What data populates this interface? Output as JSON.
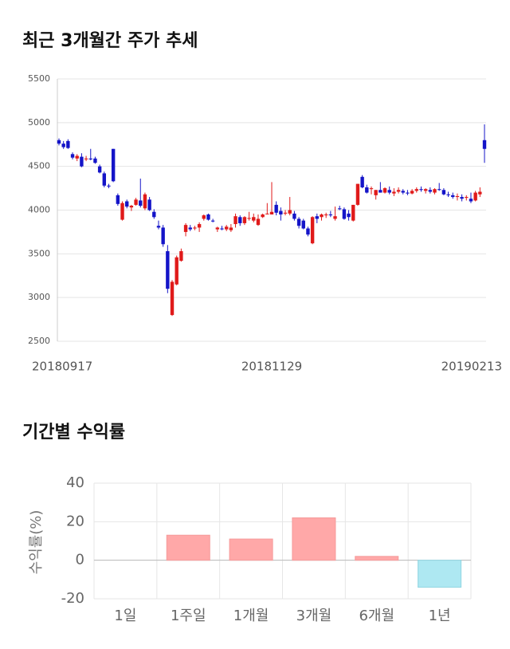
{
  "chart_data": [
    {
      "type": "candlestick",
      "title": "최근 3개월간 주가 추세",
      "categories": [
        "20180917",
        null,
        null,
        null,
        null,
        null,
        null,
        null,
        null,
        null,
        null,
        null,
        null,
        null,
        null,
        null,
        null,
        null,
        null,
        null,
        null,
        null,
        null,
        null,
        null,
        null,
        null,
        null,
        null,
        null,
        null,
        null,
        null,
        null,
        null,
        null,
        null,
        null,
        null,
        null,
        null,
        null,
        null,
        null,
        null,
        null,
        null,
        "20181129",
        null,
        null,
        null,
        null,
        null,
        null,
        null,
        null,
        null,
        null,
        null,
        null,
        null,
        null,
        null,
        null,
        null,
        null,
        null,
        null,
        null,
        null,
        null,
        null,
        null,
        null,
        null,
        null,
        null,
        null,
        null,
        null,
        null,
        null,
        null,
        null,
        null,
        null,
        null,
        null,
        null,
        null,
        null,
        null,
        null,
        null,
        "20190213"
      ],
      "open": [
        4800,
        4760,
        4790,
        4640,
        4590,
        4610,
        4580,
        4590,
        4590,
        4500,
        4420,
        4280,
        4700,
        4170,
        3890,
        4100,
        4030,
        4060,
        4110,
        4020,
        4120,
        3980,
        3820,
        3800,
        3530,
        2800,
        3150,
        3420,
        3750,
        3800,
        3790,
        3800,
        3900,
        3950,
        3880,
        3780,
        3790,
        3780,
        3770,
        3840,
        3920,
        3850,
        3900,
        3880,
        3830,
        3920,
        3960,
        3950,
        4060,
        3990,
        3960,
        3960,
        3960,
        3900,
        3880,
        3790,
        3620,
        3930,
        3920,
        3940,
        3950,
        3900,
        4020,
        4010,
        3960,
        3880,
        4060,
        4380,
        4260,
        4240,
        4170,
        4230,
        4200,
        4230,
        4190,
        4210,
        4220,
        4200,
        4190,
        4220,
        4240,
        4220,
        4230,
        4200,
        4240,
        4230,
        4180,
        4170,
        4150,
        4150,
        4140,
        4130,
        4110,
        4180,
        4800
      ],
      "high": [
        4820,
        4790,
        4810,
        4660,
        4640,
        4650,
        4620,
        4700,
        4610,
        4520,
        4440,
        4300,
        4700,
        4190,
        4100,
        4120,
        4060,
        4140,
        4360,
        4200,
        4150,
        4010,
        3880,
        3830,
        3600,
        3200,
        3480,
        3560,
        3850,
        3830,
        3820,
        3860,
        3950,
        3960,
        3900,
        3810,
        3820,
        3830,
        3840,
        3960,
        3940,
        3930,
        3980,
        3960,
        3950,
        3960,
        4080,
        4320,
        4100,
        4030,
        4000,
        4150,
        3990,
        3920,
        3900,
        3810,
        3930,
        3960,
        3960,
        3970,
        3990,
        4040,
        4050,
        4030,
        4000,
        4060,
        4300,
        4400,
        4290,
        4270,
        4230,
        4320,
        4260,
        4270,
        4250,
        4260,
        4240,
        4230,
        4240,
        4260,
        4270,
        4250,
        4260,
        4250,
        4310,
        4250,
        4210,
        4200,
        4190,
        4180,
        4170,
        4200,
        4220,
        4260,
        4980
      ],
      "low": [
        4740,
        4700,
        4700,
        4580,
        4560,
        4490,
        4560,
        4570,
        4530,
        4420,
        4260,
        4250,
        4320,
        4050,
        3880,
        4020,
        3990,
        4050,
        4030,
        4000,
        3990,
        3900,
        3780,
        3580,
        3050,
        2790,
        3140,
        3410,
        3700,
        3760,
        3770,
        3750,
        3880,
        3880,
        3860,
        3750,
        3770,
        3760,
        3750,
        3800,
        3820,
        3830,
        3880,
        3860,
        3820,
        3910,
        3950,
        3950,
        3940,
        3880,
        3940,
        3940,
        3880,
        3790,
        3780,
        3700,
        3610,
        3850,
        3880,
        3910,
        3920,
        3880,
        4000,
        3890,
        3880,
        3870,
        4050,
        4250,
        4190,
        4180,
        4120,
        4200,
        4190,
        4180,
        4160,
        4190,
        4180,
        4170,
        4180,
        4200,
        4210,
        4190,
        4190,
        4180,
        4220,
        4170,
        4150,
        4130,
        4110,
        4100,
        4110,
        4080,
        4100,
        4150,
        4540
      ],
      "close": [
        4760,
        4720,
        4710,
        4600,
        4620,
        4500,
        4590,
        4580,
        4540,
        4430,
        4280,
        4270,
        4330,
        4070,
        4080,
        4040,
        4050,
        4120,
        4050,
        4180,
        4000,
        3920,
        3800,
        3610,
        3100,
        3180,
        3460,
        3530,
        3830,
        3780,
        3800,
        3840,
        3940,
        3890,
        3870,
        3800,
        3780,
        3810,
        3800,
        3930,
        3850,
        3920,
        3910,
        3920,
        3900,
        3950,
        3960,
        3980,
        3970,
        3950,
        3970,
        4000,
        3900,
        3820,
        3790,
        3720,
        3920,
        3900,
        3950,
        3950,
        3940,
        3930,
        4010,
        3900,
        3920,
        4060,
        4300,
        4260,
        4200,
        4250,
        4230,
        4200,
        4250,
        4200,
        4210,
        4230,
        4200,
        4190,
        4220,
        4240,
        4230,
        4240,
        4210,
        4240,
        4230,
        4180,
        4170,
        4150,
        4160,
        4130,
        4150,
        4100,
        4200,
        4210,
        4700
      ],
      "up_color": "#e01a1a",
      "down_color": "#1414c8",
      "ylim": [
        2500,
        5500
      ],
      "yticks": [
        2500,
        3000,
        3500,
        4000,
        4500,
        5000,
        5500
      ],
      "grid": true
    },
    {
      "type": "bar",
      "title": "기간별 수익률",
      "ylabel": "수익률(%)",
      "categories": [
        "1일",
        "1주일",
        "1개월",
        "3개월",
        "6개월",
        "1년"
      ],
      "values": [
        0,
        13,
        11,
        22,
        2,
        -14
      ],
      "positive_color": "#ffa8a8",
      "negative_color": "#aee8f2",
      "ylim": [
        -20,
        40
      ],
      "yticks": [
        -20,
        0,
        20,
        40
      ],
      "grid": true
    }
  ]
}
